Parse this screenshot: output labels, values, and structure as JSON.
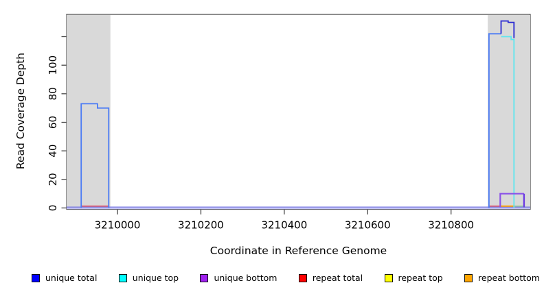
{
  "figure": {
    "x_axis_title": "Coordinate in Reference Genome",
    "y_axis_title": "Read Coverage Depth"
  },
  "chart_data": {
    "type": "line",
    "subtype": "step-coverage-plot",
    "title": "",
    "xlabel": "Coordinate in Reference Genome",
    "ylabel": "Read Coverage Depth",
    "xlim": [
      3209878,
      3210990
    ],
    "ylim": [
      0,
      135
    ],
    "grid": false,
    "legend_position": "bottom",
    "x_ticks": [
      {
        "value": 3210000,
        "label": "3210000"
      },
      {
        "value": 3210200,
        "label": "3210200"
      },
      {
        "value": 3210400,
        "label": "3210400"
      },
      {
        "value": 3210600,
        "label": "3210600"
      },
      {
        "value": 3210800,
        "label": "3210800"
      }
    ],
    "y_ticks": [
      {
        "value": 0,
        "label": "0"
      },
      {
        "value": 20,
        "label": "20"
      },
      {
        "value": 40,
        "label": "40"
      },
      {
        "value": 60,
        "label": "60"
      },
      {
        "value": 80,
        "label": "80"
      },
      {
        "value": 100,
        "label": "100"
      },
      {
        "value": 120,
        "label": ""
      }
    ],
    "highlight_regions": [
      {
        "name": "left-shaded-region",
        "x0": 3209878,
        "x1": 3209983,
        "color": "#d9d9d9"
      },
      {
        "name": "right-shaded-region",
        "x0": 3210888,
        "x1": 3210990,
        "color": "#d9d9d9"
      }
    ],
    "legend": [
      {
        "label": "unique total",
        "color": "#0000ff"
      },
      {
        "label": "unique top",
        "color": "#00ffff"
      },
      {
        "label": "unique bottom",
        "color": "#a020f0"
      },
      {
        "label": "repeat total",
        "color": "#ff0000"
      },
      {
        "label": "repeat top",
        "color": "#ffff00"
      },
      {
        "label": "repeat bottom",
        "color": "#ffa500"
      }
    ],
    "series": [
      {
        "name": "baseline-all-series-zero",
        "color": "#7d7de4",
        "width": 1.6,
        "points": [
          [
            3209878,
            0.6
          ],
          [
            3210990,
            0.6
          ]
        ]
      },
      {
        "name": "baseline-glow",
        "color": "#bdbdf4",
        "width": 1.6,
        "points": [
          [
            3209878,
            -0.5
          ],
          [
            3210990,
            -0.5
          ]
        ]
      },
      {
        "name": "repeat-total-left-zero",
        "color": "#dd5468",
        "width": 1.6,
        "points": [
          [
            3209913,
            1.3
          ],
          [
            3209979,
            1.3
          ]
        ]
      },
      {
        "name": "repeat-total-right-zero",
        "color": "#dd5468",
        "width": 1.6,
        "points": [
          [
            3210891,
            1.3
          ],
          [
            3210918,
            1.3
          ]
        ]
      },
      {
        "name": "repeat-bottom-right-zero",
        "color": "#ffa200",
        "width": 1.8,
        "points": [
          [
            3210918,
            1.3
          ],
          [
            3210953,
            1.3
          ]
        ]
      },
      {
        "name": "overlap-blend-zero",
        "color": "#93c89c",
        "width": 1.6,
        "points": [
          [
            3210953,
            1.3
          ],
          [
            3210977,
            1.3
          ]
        ]
      },
      {
        "name": "unique-total-left-peak",
        "color": "#4b7bf5",
        "width": 1.8,
        "points": [
          [
            3209913,
            0
          ],
          [
            3209913,
            73
          ],
          [
            3209952,
            73
          ],
          [
            3209952,
            70
          ],
          [
            3209979,
            70
          ],
          [
            3209979,
            0
          ]
        ]
      },
      {
        "name": "unique-total-right-rise",
        "color": "#4b7bf5",
        "width": 1.8,
        "points": [
          [
            3210891,
            0
          ],
          [
            3210891,
            122
          ],
          [
            3210920,
            122
          ]
        ]
      },
      {
        "name": "unique-top-right",
        "color": "#5fe6ef",
        "width": 1.8,
        "points": [
          [
            3210920,
            120
          ],
          [
            3210944,
            120
          ],
          [
            3210944,
            118
          ],
          [
            3210951,
            118
          ],
          [
            3210951,
            0
          ]
        ]
      },
      {
        "name": "unique-total-right-cap",
        "color": "#2a2ad2",
        "width": 1.8,
        "points": [
          [
            3210920,
            122
          ],
          [
            3210920,
            131
          ],
          [
            3210937,
            131
          ],
          [
            3210937,
            130
          ],
          [
            3210951,
            130
          ],
          [
            3210951,
            119
          ]
        ]
      },
      {
        "name": "unique-bottom-right-box",
        "color": "#8b52e8",
        "width": 2.2,
        "points": [
          [
            3210918,
            0.5
          ],
          [
            3210918,
            10
          ],
          [
            3210975,
            10
          ]
        ]
      },
      {
        "name": "unique-bottom-right-edge",
        "color": "#6c3ce2",
        "width": 2.4,
        "points": [
          [
            3210975,
            10
          ],
          [
            3210975,
            0.5
          ]
        ]
      }
    ]
  }
}
